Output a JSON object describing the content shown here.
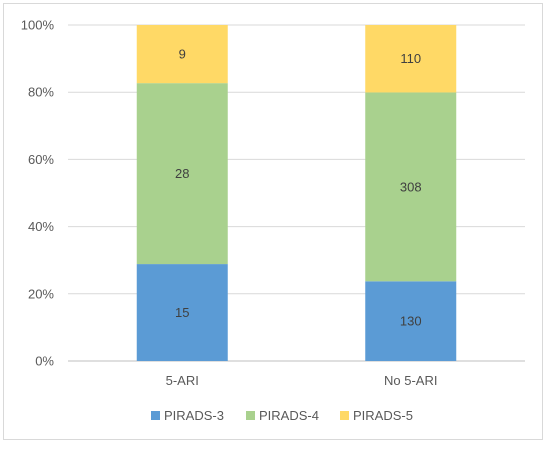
{
  "chart_data": {
    "type": "bar",
    "stacked": "percent",
    "categories": [
      "5-ARI",
      "No 5-ARI"
    ],
    "series": [
      {
        "name": "PIRADS-3",
        "color": "#5b9bd5",
        "values": [
          15,
          130
        ]
      },
      {
        "name": "PIRADS-4",
        "color": "#a9d18e",
        "values": [
          28,
          308
        ]
      },
      {
        "name": "PIRADS-5",
        "color": "#ffd966",
        "values": [
          9,
          110
        ]
      }
    ],
    "y_ticks": [
      "0%",
      "20%",
      "40%",
      "60%",
      "80%",
      "100%"
    ],
    "ylim": [
      0,
      100
    ],
    "grid": true,
    "legend": "bottom",
    "title": "",
    "xlabel": "",
    "ylabel": ""
  }
}
